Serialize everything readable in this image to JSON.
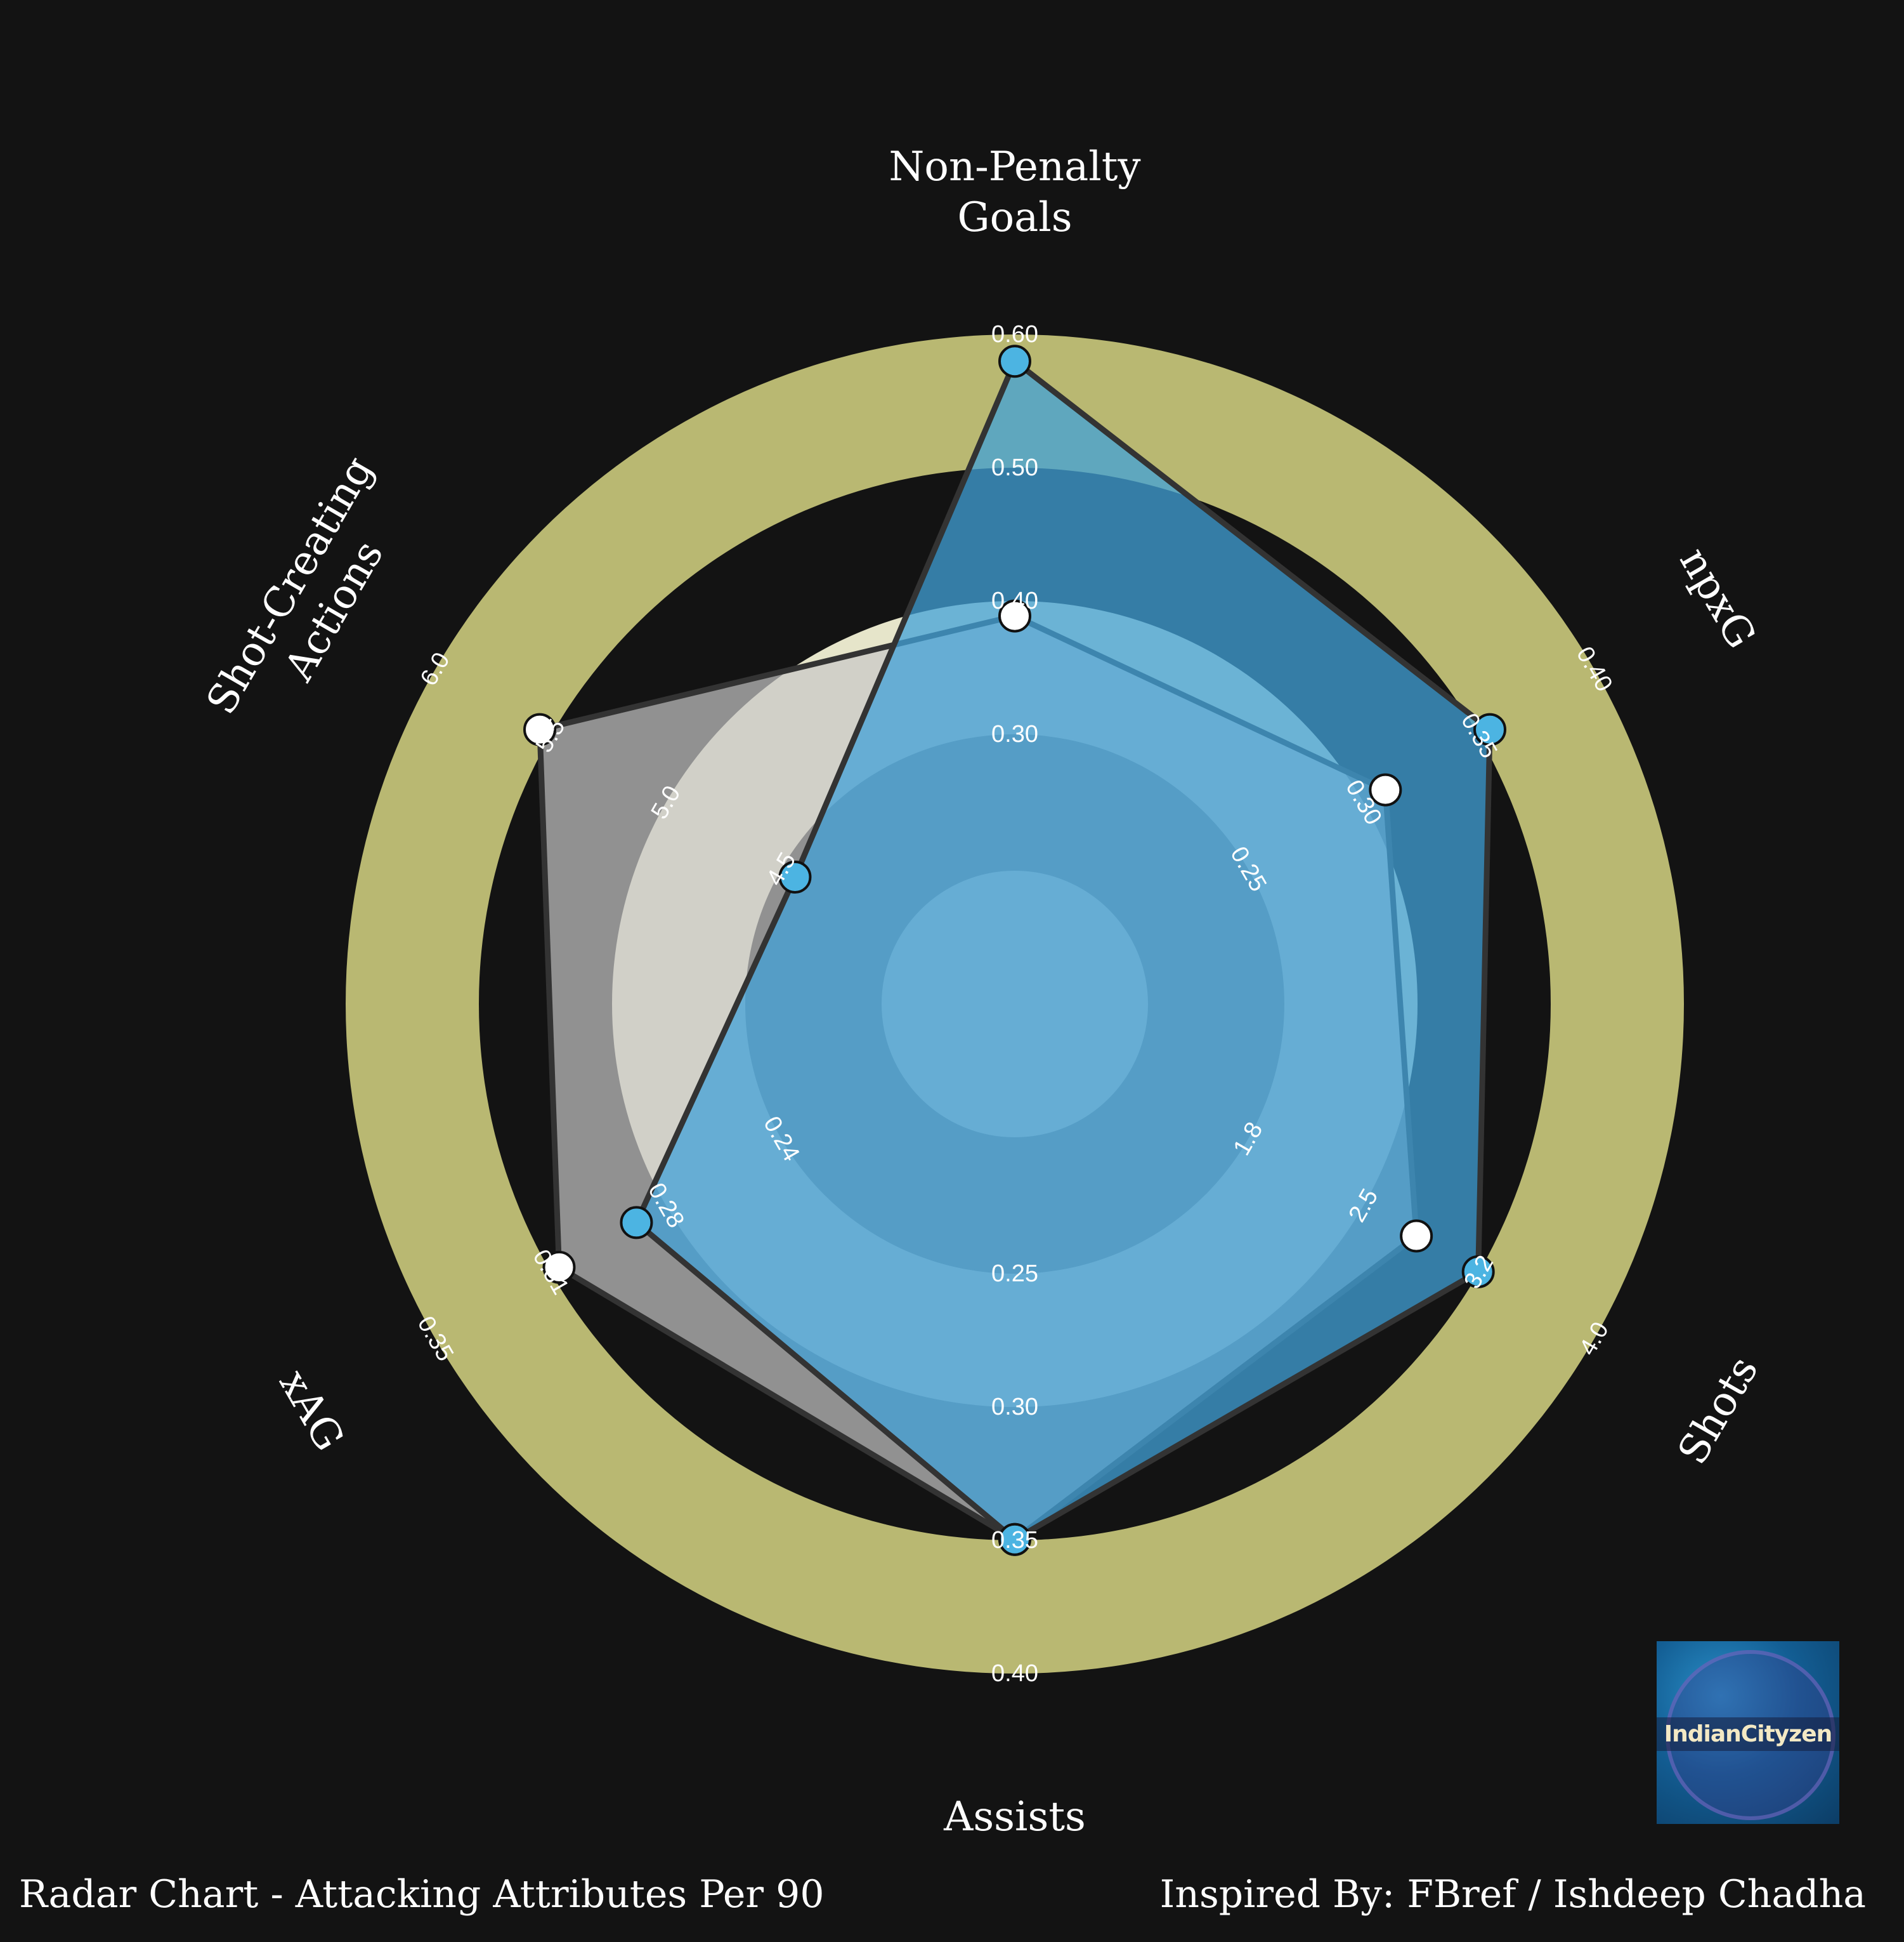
{
  "chart_data": {
    "type": "radar",
    "title": "",
    "parameters": [
      {
        "label": [
          "Non-Penalty",
          "Goals"
        ],
        "ticks": [
          "0.30",
          "0.40",
          "0.50",
          "0.60"
        ]
      },
      {
        "label": [
          "npxG"
        ],
        "ticks": [
          "0.25",
          "0.30",
          "0.35",
          "0.40"
        ]
      },
      {
        "label": [
          "Shots"
        ],
        "ticks": [
          "1.8",
          "2.5",
          "3.2",
          "4.0"
        ]
      },
      {
        "label": [
          "Assists"
        ],
        "ticks": [
          "0.25",
          "0.30",
          "0.35",
          "0.40"
        ]
      },
      {
        "label": [
          "xAG"
        ],
        "ticks": [
          "0.24",
          "0.28",
          "0.31",
          "0.35"
        ]
      },
      {
        "label": [
          "Shot-Creating",
          "Actions"
        ],
        "ticks": [
          "4.5",
          "5.0",
          "5.5",
          "6.0"
        ]
      }
    ],
    "ranges": [
      [
        0.2,
        0.6
      ],
      [
        0.2,
        0.4
      ],
      [
        1.0,
        4.0
      ],
      [
        0.2,
        0.4
      ],
      [
        0.2,
        0.35
      ],
      [
        4.0,
        6.0
      ]
    ],
    "series": [
      {
        "values": [
          0.58,
          0.355,
          3.25,
          0.35,
          0.285,
          4.45
        ]
      },
      {
        "values": [
          0.39,
          0.31,
          2.85,
          0.35,
          0.31,
          5.55
        ]
      }
    ]
  },
  "colors": {
    "background": "#131313",
    "ring_outer": "#b9b872",
    "ring_inner": "#e6e5ca",
    "ring_dark": "#131313",
    "series_a_fill": "#41a1d8",
    "series_b_fill": "#c8c8c8",
    "series_a_marker": "#4cb4e2",
    "series_b_marker": "#ffffff"
  },
  "footer": {
    "left": "Radar Chart - Attacking Attributes Per 90",
    "right": "Inspired By: FBref / Ishdeep Chadha"
  },
  "logo": {
    "text": "IndianCityzen",
    "icon": "club-crest-logo"
  }
}
